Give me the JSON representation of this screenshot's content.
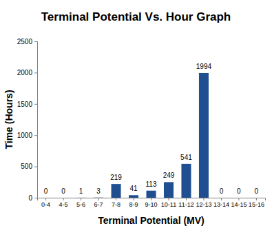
{
  "chart_data": {
    "type": "bar",
    "title": "Terminal Potential Vs. Hour Graph",
    "x_label": "Terminal Potential (MV)",
    "y_label": "Time (Hours)",
    "categories": [
      "0-4",
      "4-5",
      "5-6",
      "6-7",
      "7-8",
      "8-9",
      "9-10",
      "10-11",
      "11-12",
      "12-13",
      "13-14",
      "14-15",
      "15-16"
    ],
    "values": [
      0,
      0,
      1,
      3,
      219,
      41,
      113,
      249,
      541,
      1994,
      0,
      0,
      0
    ],
    "color": "#1f4e91",
    "ylim": [
      0,
      2500
    ],
    "yticks": [
      0,
      500,
      1000,
      1500,
      2000,
      2500
    ],
    "grid": false,
    "data_labels": true
  }
}
